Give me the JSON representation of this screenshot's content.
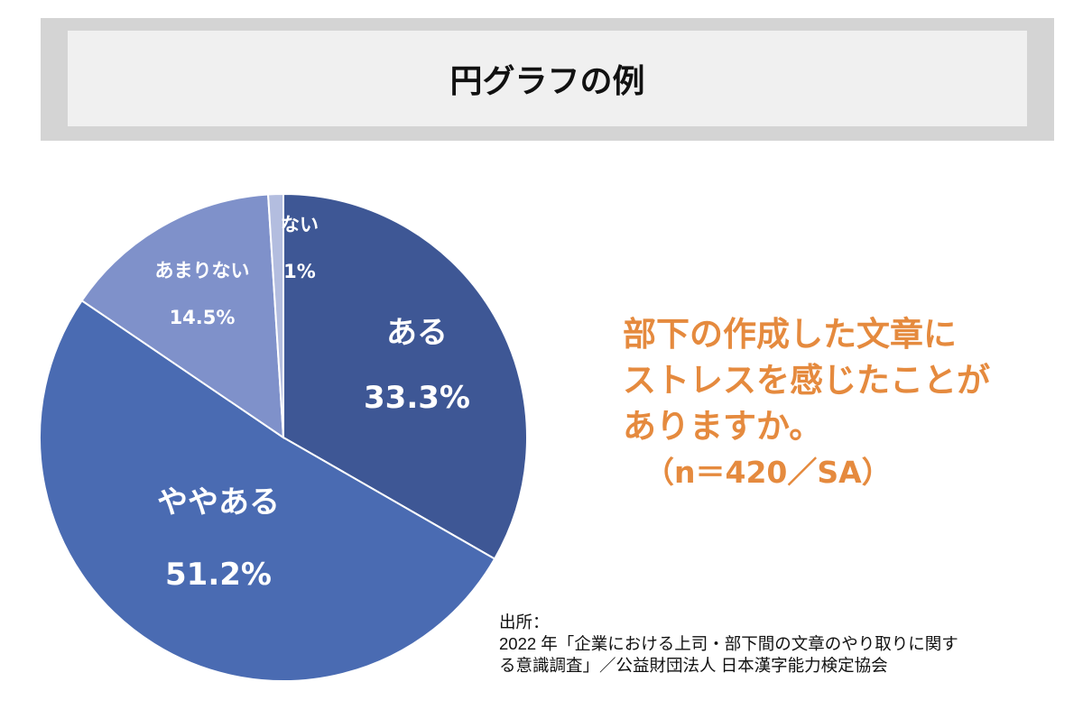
{
  "title": "円グラフの例",
  "question": {
    "line1": "部下の作成した文章に",
    "line2": "ストレスを感じたことが",
    "line3": "ありますか。",
    "sample": "（n＝420／SA）"
  },
  "source": {
    "line1": "出所：",
    "line2": "2022 年「企業における上司・部下間の文章のやり取りに関す",
    "line3": "る意識調査」／公益財団法人 日本漢字能力検定協会"
  },
  "chart_data": {
    "type": "pie",
    "start": "top",
    "direction": "clockwise",
    "slices": [
      {
        "label": "ある",
        "value": 33.3,
        "display": "33.3%",
        "color": "#3e5795"
      },
      {
        "label": "ややある",
        "value": 51.2,
        "display": "51.2%",
        "color": "#4a6bb2"
      },
      {
        "label": "あまりない",
        "value": 14.5,
        "display": "14.5%",
        "color": "#7f91ca"
      },
      {
        "label": "ない",
        "value": 1,
        "display": "1%",
        "color": "#b3bddf"
      }
    ]
  }
}
